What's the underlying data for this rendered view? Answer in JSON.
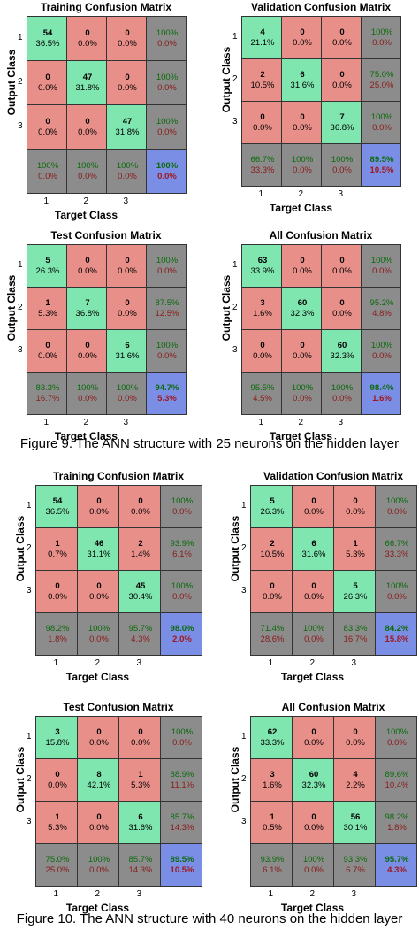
{
  "figure9": {
    "caption": "Figure 9. The ANN structure with 25 neurons on the hidden layer",
    "matrices": [
      {
        "title": "Training Confusion Matrix",
        "ylabel": "Output Class",
        "xlabel": "Target Class",
        "ticks": [
          "1",
          "2",
          "3"
        ],
        "cells": [
          [
            [
              "54",
              "36.5%"
            ],
            [
              "0",
              "0.0%"
            ],
            [
              "0",
              "0.0%"
            ],
            [
              "100%",
              "0.0%"
            ]
          ],
          [
            [
              "0",
              "0.0%"
            ],
            [
              "47",
              "31.8%"
            ],
            [
              "0",
              "0.0%"
            ],
            [
              "100%",
              "0.0%"
            ]
          ],
          [
            [
              "0",
              "0.0%"
            ],
            [
              "0",
              "0.0%"
            ],
            [
              "47",
              "31.8%"
            ],
            [
              "100%",
              "0.0%"
            ]
          ],
          [
            [
              "100%",
              "0.0%"
            ],
            [
              "100%",
              "0.0%"
            ],
            [
              "100%",
              "0.0%"
            ],
            [
              "100%",
              "0.0%"
            ]
          ]
        ]
      },
      {
        "title": "Validation Confusion Matrix",
        "ylabel": "Output Class",
        "xlabel": "Target Class",
        "ticks": [
          "1",
          "2",
          "3"
        ],
        "cells": [
          [
            [
              "4",
              "21.1%"
            ],
            [
              "0",
              "0.0%"
            ],
            [
              "0",
              "0.0%"
            ],
            [
              "100%",
              "0.0%"
            ]
          ],
          [
            [
              "2",
              "10.5%"
            ],
            [
              "6",
              "31.6%"
            ],
            [
              "0",
              "0.0%"
            ],
            [
              "75.0%",
              "25.0%"
            ]
          ],
          [
            [
              "0",
              "0.0%"
            ],
            [
              "0",
              "0.0%"
            ],
            [
              "7",
              "36.8%"
            ],
            [
              "100%",
              "0.0%"
            ]
          ],
          [
            [
              "66.7%",
              "33.3%"
            ],
            [
              "100%",
              "0.0%"
            ],
            [
              "100%",
              "0.0%"
            ],
            [
              "89.5%",
              "10.5%"
            ]
          ]
        ]
      },
      {
        "title": "Test Confusion Matrix",
        "ylabel": "Output Class",
        "xlabel": "Target Class",
        "ticks": [
          "1",
          "2",
          "3"
        ],
        "cells": [
          [
            [
              "5",
              "26.3%"
            ],
            [
              "0",
              "0.0%"
            ],
            [
              "0",
              "0.0%"
            ],
            [
              "100%",
              "0.0%"
            ]
          ],
          [
            [
              "1",
              "5.3%"
            ],
            [
              "7",
              "36.8%"
            ],
            [
              "0",
              "0.0%"
            ],
            [
              "87.5%",
              "12.5%"
            ]
          ],
          [
            [
              "0",
              "0.0%"
            ],
            [
              "0",
              "0.0%"
            ],
            [
              "6",
              "31.6%"
            ],
            [
              "100%",
              "0.0%"
            ]
          ],
          [
            [
              "83.3%",
              "16.7%"
            ],
            [
              "100%",
              "0.0%"
            ],
            [
              "100%",
              "0.0%"
            ],
            [
              "94.7%",
              "5.3%"
            ]
          ]
        ]
      },
      {
        "title": "All Confusion Matrix",
        "ylabel": "Output Class",
        "xlabel": "Target Class",
        "ticks": [
          "1",
          "2",
          "3"
        ],
        "cells": [
          [
            [
              "63",
              "33.9%"
            ],
            [
              "0",
              "0.0%"
            ],
            [
              "0",
              "0.0%"
            ],
            [
              "100%",
              "0.0%"
            ]
          ],
          [
            [
              "3",
              "1.6%"
            ],
            [
              "60",
              "32.3%"
            ],
            [
              "0",
              "0.0%"
            ],
            [
              "95.2%",
              "4.8%"
            ]
          ],
          [
            [
              "0",
              "0.0%"
            ],
            [
              "0",
              "0.0%"
            ],
            [
              "60",
              "32.3%"
            ],
            [
              "100%",
              "0.0%"
            ]
          ],
          [
            [
              "95.5%",
              "4.5%"
            ],
            [
              "100%",
              "0.0%"
            ],
            [
              "100%",
              "0.0%"
            ],
            [
              "98.4%",
              "1.6%"
            ]
          ]
        ]
      }
    ]
  },
  "figure10": {
    "caption": "Figure 10. The ANN structure with 40 neurons on the hidden layer",
    "matrices": [
      {
        "title": "Training Confusion Matrix",
        "ylabel": "Output Class",
        "xlabel": "Target Class",
        "ticks": [
          "1",
          "2",
          "3"
        ],
        "cells": [
          [
            [
              "54",
              "36.5%"
            ],
            [
              "0",
              "0.0%"
            ],
            [
              "0",
              "0.0%"
            ],
            [
              "100%",
              "0.0%"
            ]
          ],
          [
            [
              "1",
              "0.7%"
            ],
            [
              "46",
              "31.1%"
            ],
            [
              "2",
              "1.4%"
            ],
            [
              "93.9%",
              "6.1%"
            ]
          ],
          [
            [
              "0",
              "0.0%"
            ],
            [
              "0",
              "0.0%"
            ],
            [
              "45",
              "30.4%"
            ],
            [
              "100%",
              "0.0%"
            ]
          ],
          [
            [
              "98.2%",
              "1.8%"
            ],
            [
              "100%",
              "0.0%"
            ],
            [
              "95.7%",
              "4.3%"
            ],
            [
              "98.0%",
              "2.0%"
            ]
          ]
        ]
      },
      {
        "title": "Validation Confusion Matrix",
        "ylabel": "Output Class",
        "xlabel": "Target Class",
        "ticks": [
          "1",
          "2",
          "3"
        ],
        "cells": [
          [
            [
              "5",
              "26.3%"
            ],
            [
              "0",
              "0.0%"
            ],
            [
              "0",
              "0.0%"
            ],
            [
              "100%",
              "0.0%"
            ]
          ],
          [
            [
              "2",
              "10.5%"
            ],
            [
              "6",
              "31.6%"
            ],
            [
              "1",
              "5.3%"
            ],
            [
              "66.7%",
              "33.3%"
            ]
          ],
          [
            [
              "0",
              "0.0%"
            ],
            [
              "0",
              "0.0%"
            ],
            [
              "5",
              "26.3%"
            ],
            [
              "100%",
              "0.0%"
            ]
          ],
          [
            [
              "71.4%",
              "28.6%"
            ],
            [
              "100%",
              "0.0%"
            ],
            [
              "83.3%",
              "16.7%"
            ],
            [
              "84.2%",
              "15.8%"
            ]
          ]
        ]
      },
      {
        "title": "Test Confusion Matrix",
        "ylabel": "Output Class",
        "xlabel": "Target Class",
        "ticks": [
          "1",
          "2",
          "3"
        ],
        "cells": [
          [
            [
              "3",
              "15.8%"
            ],
            [
              "0",
              "0.0%"
            ],
            [
              "0",
              "0.0%"
            ],
            [
              "100%",
              "0.0%"
            ]
          ],
          [
            [
              "0",
              "0.0%"
            ],
            [
              "8",
              "42.1%"
            ],
            [
              "1",
              "5.3%"
            ],
            [
              "88.9%",
              "11.1%"
            ]
          ],
          [
            [
              "1",
              "5.3%"
            ],
            [
              "0",
              "0.0%"
            ],
            [
              "6",
              "31.6%"
            ],
            [
              "85.7%",
              "14.3%"
            ]
          ],
          [
            [
              "75.0%",
              "25.0%"
            ],
            [
              "100%",
              "0.0%"
            ],
            [
              "85.7%",
              "14.3%"
            ],
            [
              "89.5%",
              "10.5%"
            ]
          ]
        ]
      },
      {
        "title": "All Confusion Matrix",
        "ylabel": "Output Class",
        "xlabel": "Target Class",
        "ticks": [
          "1",
          "2",
          "3"
        ],
        "cells": [
          [
            [
              "62",
              "33.3%"
            ],
            [
              "0",
              "0.0%"
            ],
            [
              "0",
              "0.0%"
            ],
            [
              "100%",
              "0.0%"
            ]
          ],
          [
            [
              "3",
              "1.6%"
            ],
            [
              "60",
              "32.3%"
            ],
            [
              "4",
              "2.2%"
            ],
            [
              "89.6%",
              "10.4%"
            ]
          ],
          [
            [
              "1",
              "0.5%"
            ],
            [
              "0",
              "0.0%"
            ],
            [
              "56",
              "30.1%"
            ],
            [
              "98.2%",
              "1.8%"
            ]
          ],
          [
            [
              "93.9%",
              "6.1%"
            ],
            [
              "100%",
              "0.0%"
            ],
            [
              "93.3%",
              "6.7%"
            ],
            [
              "95.7%",
              "4.3%"
            ]
          ]
        ]
      }
    ]
  },
  "colors": {
    "correct": "#7fe6b0",
    "incorrect": "#e98f89",
    "summary": "#8c8c8c",
    "overall": "#7a8ee6",
    "accuracy_text": "#0a6b0a",
    "error_text": "#8b1a1a"
  }
}
